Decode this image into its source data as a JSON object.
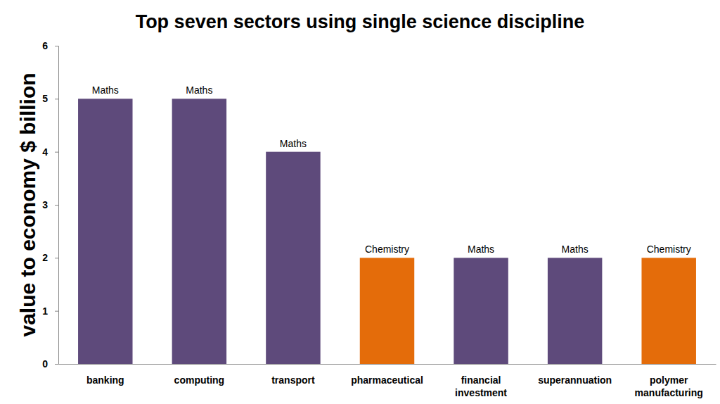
{
  "chart_data": {
    "type": "bar",
    "title": "Top seven sectors using single science discipline",
    "y_label": "value to economy $ billion",
    "categories": [
      "banking",
      "computing",
      "transport",
      "pharmaceutical",
      "financial investment",
      "superannuation",
      "polymer manufacturing"
    ],
    "values": [
      5,
      5,
      4,
      2,
      2,
      2,
      2
    ],
    "annotations": [
      "Maths",
      "Maths",
      "Maths",
      "Chemistry",
      "Maths",
      "Maths",
      "Chemistry"
    ],
    "colors": [
      "#5e4a7b",
      "#5e4a7b",
      "#5e4a7b",
      "#e46c0a",
      "#5e4a7b",
      "#5e4a7b",
      "#e46c0a"
    ],
    "ylim": [
      0,
      6
    ],
    "yticks": [
      0,
      1,
      2,
      3,
      4,
      5,
      6
    ],
    "grid": false
  }
}
